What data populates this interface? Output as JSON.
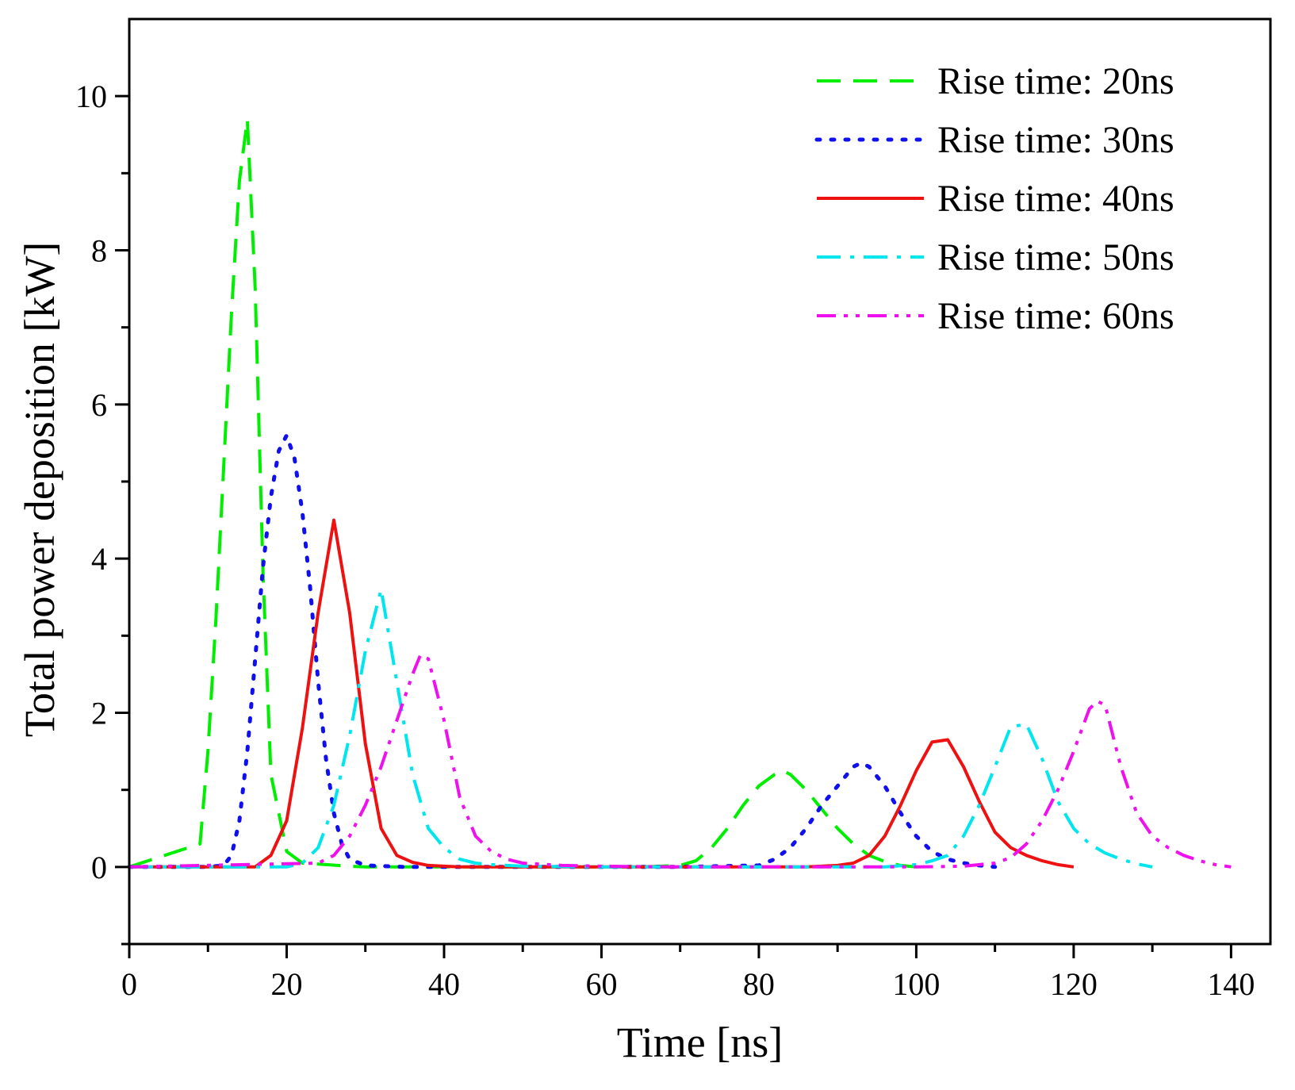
{
  "chart_data": {
    "type": "line",
    "title": "",
    "xlabel": "Time [ns]",
    "ylabel": "Total power deposition [kW]",
    "xlim": [
      0,
      145
    ],
    "ylim": [
      -1,
      11
    ],
    "xticks": [
      0,
      20,
      40,
      60,
      80,
      100,
      120,
      140
    ],
    "yticks": [
      0,
      2,
      4,
      6,
      8,
      10
    ],
    "xtick_labels": [
      "0",
      "20",
      "40",
      "60",
      "80",
      "100",
      "120",
      "140"
    ],
    "ytick_labels": [
      "0",
      "2",
      "4",
      "6",
      "8",
      "10"
    ],
    "grid": false,
    "legend_position": "top-right",
    "series": [
      {
        "name": "Rise time: 20ns",
        "color": "#00ee00",
        "dash": "dashed",
        "x": [
          0,
          9,
          10,
          11,
          12,
          13,
          14,
          15,
          16,
          17,
          18,
          20,
          22,
          25,
          28,
          30,
          35,
          40,
          50,
          60,
          65,
          70,
          72,
          74,
          76,
          78,
          80,
          82,
          83,
          84,
          86,
          88,
          90,
          92,
          94,
          96,
          98,
          100
        ],
        "y": [
          0,
          0.3,
          1.5,
          3.2,
          5.2,
          7.2,
          8.9,
          9.7,
          7.5,
          3.8,
          1.2,
          0.2,
          0.05,
          0.03,
          0.01,
          0,
          0,
          0,
          0,
          0,
          0,
          0.02,
          0.08,
          0.25,
          0.5,
          0.8,
          1.05,
          1.2,
          1.25,
          1.2,
          1.0,
          0.75,
          0.5,
          0.3,
          0.15,
          0.07,
          0.02,
          0
        ]
      },
      {
        "name": "Rise time: 30ns",
        "color": "#1010ee",
        "dash": "dotted",
        "x": [
          0,
          10,
          12,
          13,
          14,
          15,
          16,
          17,
          18,
          19,
          20,
          21,
          22,
          23,
          24,
          25,
          26,
          27,
          28,
          30,
          35,
          40,
          50,
          60,
          70,
          80,
          82,
          84,
          86,
          88,
          90,
          92,
          93,
          94,
          96,
          98,
          100,
          102,
          104,
          106,
          108,
          110
        ],
        "y": [
          0,
          0,
          0.02,
          0.15,
          0.6,
          1.5,
          2.7,
          3.9,
          4.8,
          5.4,
          5.6,
          5.3,
          4.6,
          3.6,
          2.4,
          1.4,
          0.7,
          0.3,
          0.1,
          0.02,
          0,
          0,
          0,
          0,
          0,
          0.02,
          0.1,
          0.25,
          0.5,
          0.8,
          1.05,
          1.3,
          1.35,
          1.3,
          1.05,
          0.7,
          0.4,
          0.2,
          0.1,
          0.05,
          0.02,
          0
        ]
      },
      {
        "name": "Rise time: 40ns",
        "color": "#ee1111",
        "dash": "solid",
        "x": [
          0,
          16,
          18,
          20,
          22,
          24,
          26,
          28,
          30,
          32,
          34,
          36,
          38,
          40,
          42,
          44,
          50,
          60,
          70,
          80,
          86,
          90,
          92,
          94,
          96,
          98,
          100,
          102,
          104,
          106,
          108,
          110,
          112,
          114,
          116,
          118,
          120
        ],
        "y": [
          0,
          0,
          0.15,
          0.6,
          1.8,
          3.3,
          4.5,
          3.3,
          1.6,
          0.5,
          0.15,
          0.06,
          0.02,
          0.01,
          0,
          0,
          0,
          0,
          0,
          0,
          0,
          0.02,
          0.05,
          0.15,
          0.4,
          0.8,
          1.25,
          1.62,
          1.65,
          1.3,
          0.85,
          0.45,
          0.25,
          0.15,
          0.08,
          0.03,
          0
        ]
      },
      {
        "name": "Rise time: 50ns",
        "color": "#00e6ee",
        "dash": "dashdot",
        "x": [
          0,
          20,
          22,
          24,
          26,
          28,
          30,
          32,
          34,
          36,
          38,
          40,
          42,
          44,
          46,
          50,
          60,
          70,
          80,
          90,
          96,
          100,
          102,
          104,
          106,
          108,
          110,
          112,
          114,
          116,
          118,
          120,
          122,
          124,
          126,
          128,
          130
        ],
        "y": [
          0,
          0,
          0.05,
          0.25,
          0.8,
          1.7,
          2.8,
          3.6,
          2.4,
          1.2,
          0.5,
          0.25,
          0.1,
          0.05,
          0.03,
          0.01,
          0,
          0,
          0,
          0,
          0,
          0.03,
          0.08,
          0.15,
          0.4,
          0.8,
          1.3,
          1.82,
          1.85,
          1.4,
          0.85,
          0.5,
          0.3,
          0.18,
          0.1,
          0.04,
          0
        ]
      },
      {
        "name": "Rise time: 60ns",
        "color": "#ee11ee",
        "dash": "dashdotdot",
        "x": [
          0,
          24,
          26,
          28,
          30,
          32,
          34,
          36,
          37,
          38,
          40,
          42,
          44,
          46,
          48,
          50,
          55,
          60,
          70,
          80,
          90,
          100,
          106,
          110,
          112,
          114,
          116,
          118,
          120,
          122,
          123,
          124,
          126,
          128,
          130,
          132,
          134,
          136,
          138,
          140
        ],
        "y": [
          0,
          0.05,
          0.15,
          0.4,
          0.8,
          1.3,
          1.9,
          2.5,
          2.75,
          2.7,
          1.9,
          0.9,
          0.4,
          0.2,
          0.1,
          0.05,
          0.02,
          0.01,
          0,
          0,
          0,
          0,
          0.01,
          0.05,
          0.12,
          0.3,
          0.6,
          1.0,
          1.5,
          2.05,
          2.15,
          2.1,
          1.3,
          0.7,
          0.4,
          0.25,
          0.15,
          0.08,
          0.03,
          0
        ]
      }
    ]
  }
}
